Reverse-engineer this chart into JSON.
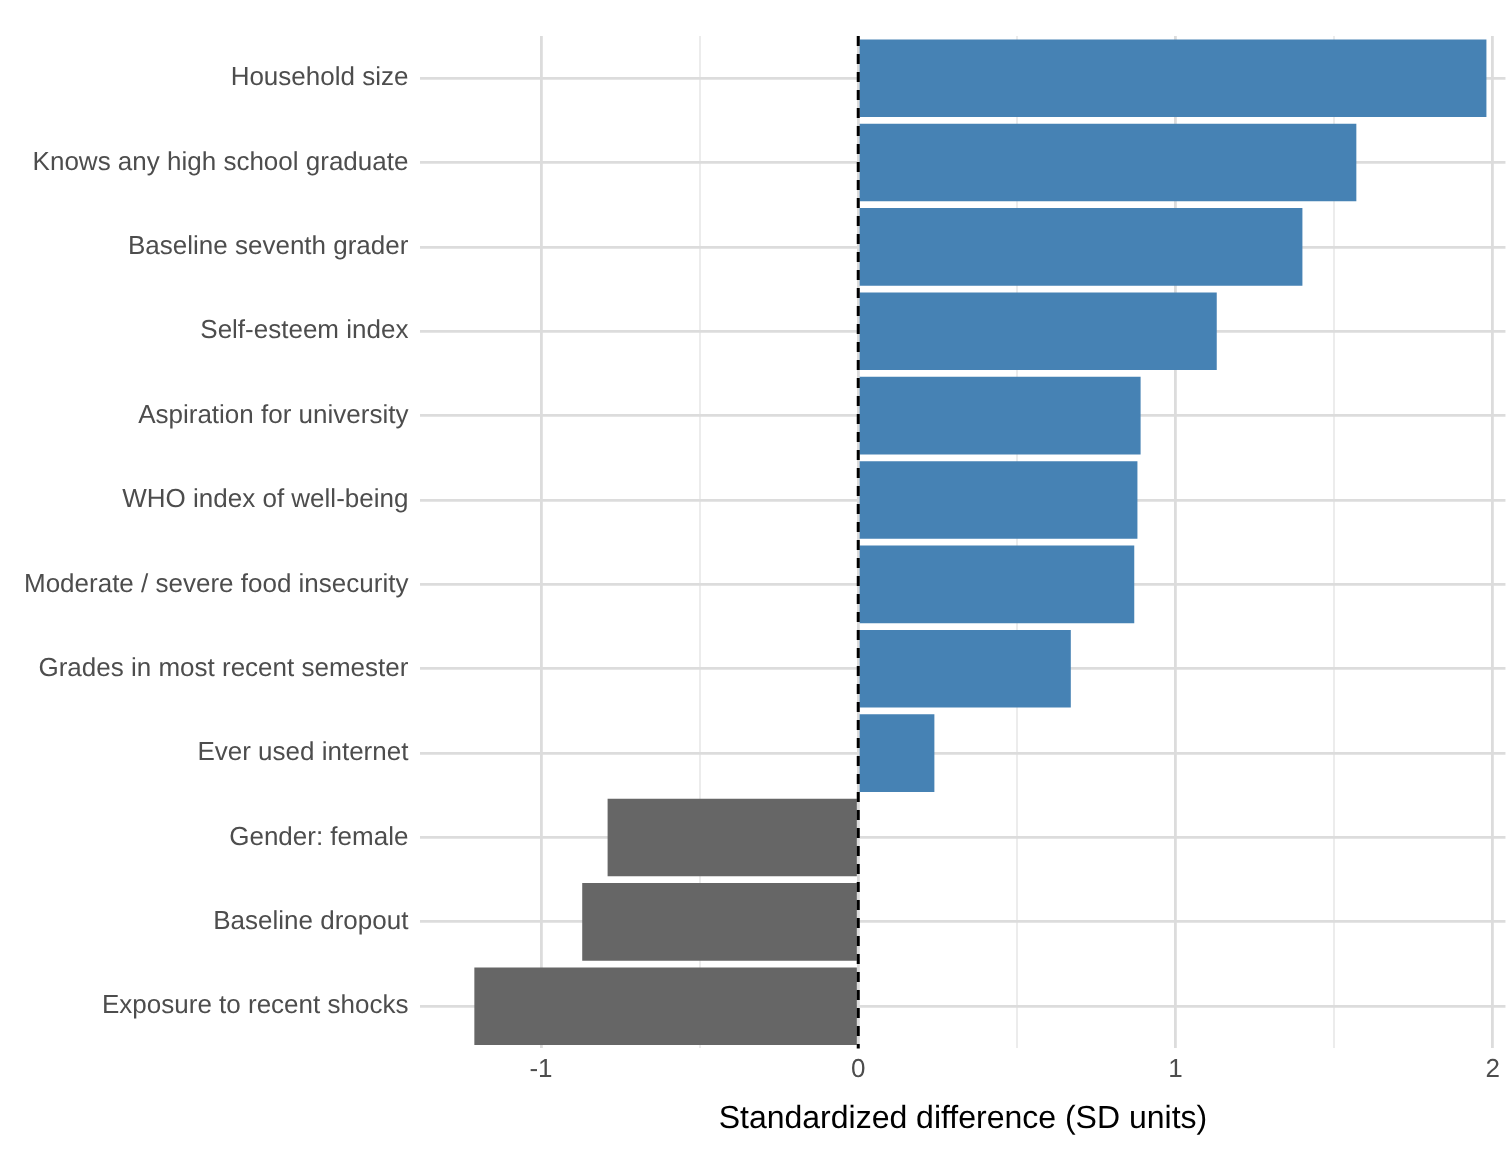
{
  "chart_data": {
    "type": "bar",
    "orientation": "horizontal",
    "xlabel": "Standardized difference (SD units)",
    "categories": [
      "Household size",
      "Knows any high school graduate",
      "Baseline seventh grader",
      "Self-esteem index",
      "Aspiration for university",
      "WHO index of well-being",
      "Moderate / severe food insecurity",
      "Grades in most recent semester",
      "Ever used internet",
      "Gender: female",
      "Baseline dropout",
      "Exposure to recent shocks"
    ],
    "values": [
      1.98,
      1.57,
      1.4,
      1.13,
      0.89,
      0.88,
      0.87,
      0.67,
      0.24,
      -0.79,
      -0.87,
      -1.21
    ],
    "colors": [
      "#4682b4",
      "#4682b4",
      "#4682b4",
      "#4682b4",
      "#4682b4",
      "#4682b4",
      "#4682b4",
      "#4682b4",
      "#4682b4",
      "#666666",
      "#666666",
      "#666666"
    ],
    "xlim": [
      -1.38,
      2.04
    ],
    "xticks": [
      -1,
      {
        "value": -0.5,
        "label": null
      },
      0,
      {
        "value": 0.5,
        "label": null
      },
      1,
      {
        "value": 1.5,
        "label": null
      },
      2
    ],
    "grid": true,
    "legend": false,
    "ref_lines": [
      {
        "axis": "x",
        "value": 0,
        "color": "#000000",
        "line_style": "dashed"
      }
    ]
  }
}
